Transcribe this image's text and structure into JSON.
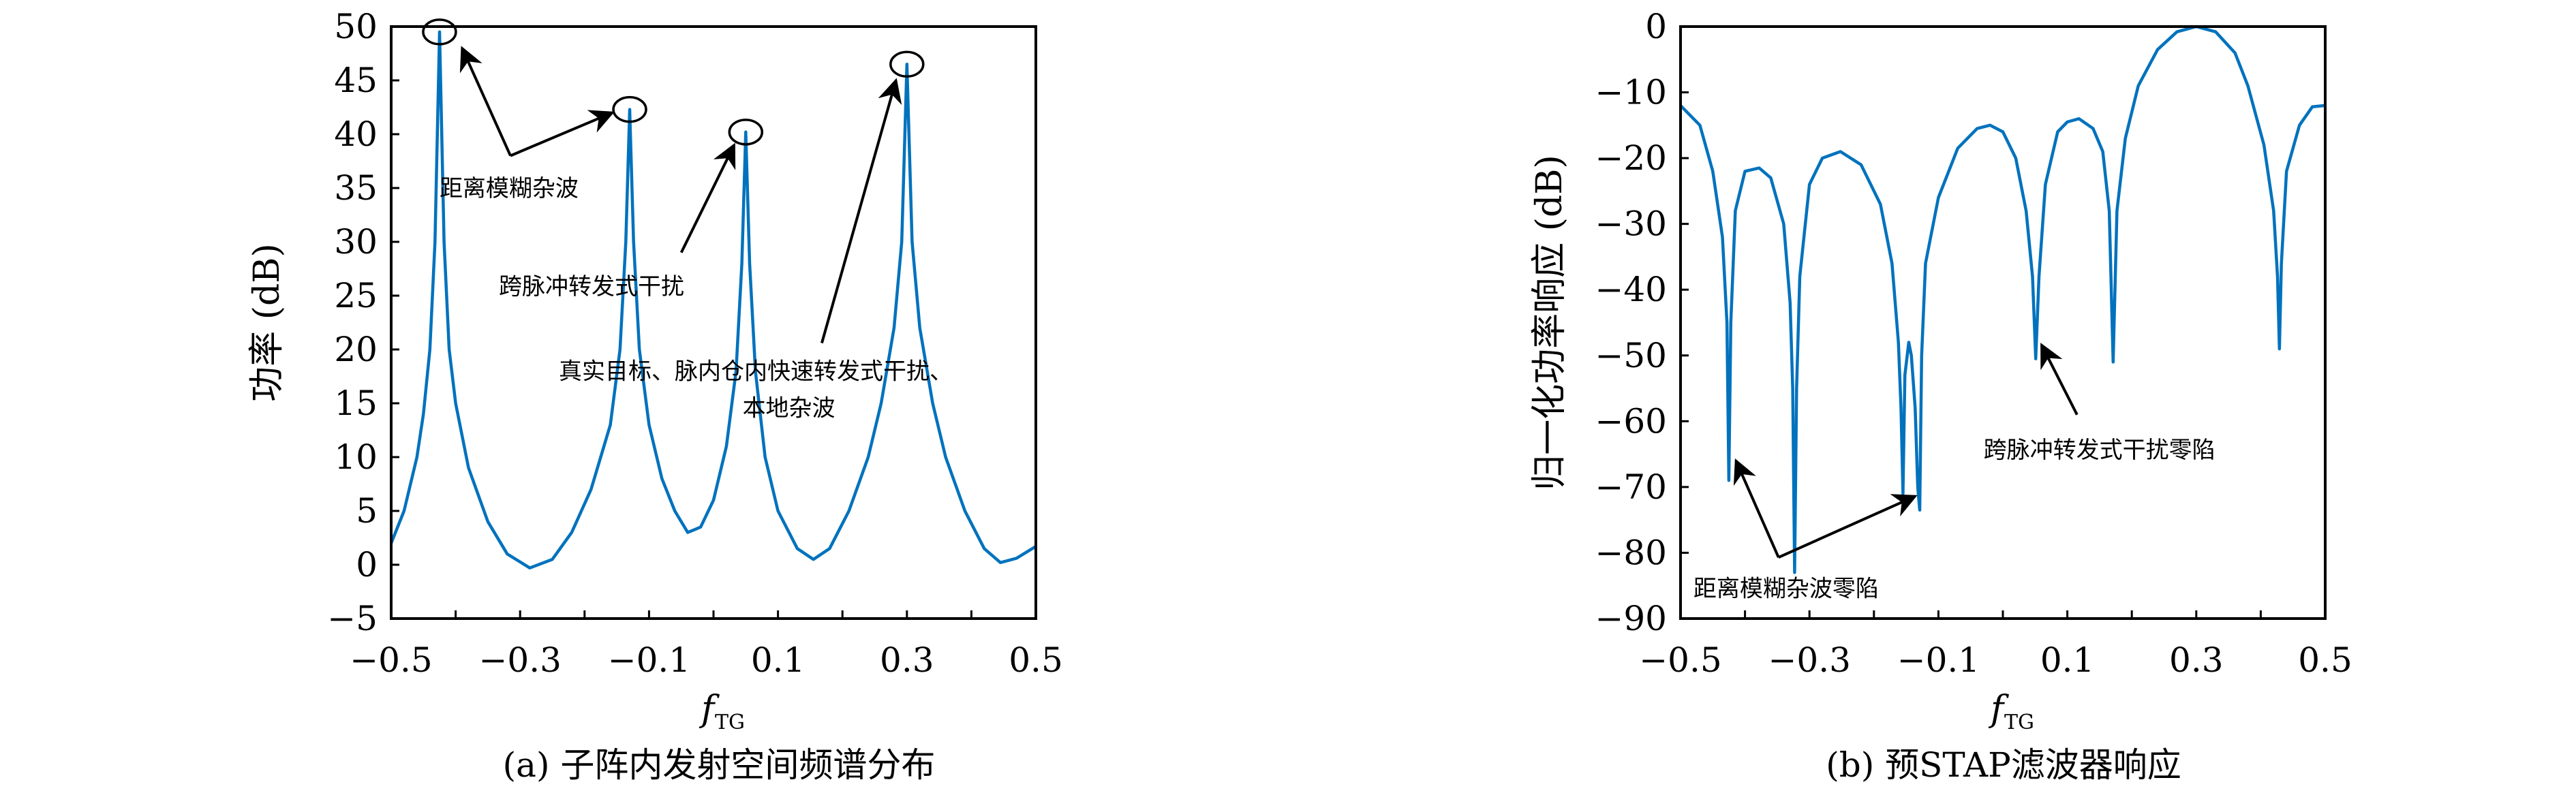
{
  "chart_data": [
    {
      "type": "line",
      "caption": "(a) 子阵内发射空间频谱分布",
      "xlabel": "f",
      "xlabel_sub": "TG",
      "ylabel": "功率 (dB)",
      "xlim": [
        -0.5,
        0.5
      ],
      "ylim": [
        -5,
        50
      ],
      "xticks": [
        -0.5,
        -0.4,
        -0.3,
        -0.2,
        -0.1,
        0,
        0.1,
        0.2,
        0.3,
        0.4,
        0.5
      ],
      "xticklabels": [
        "−0.5",
        "",
        "−0.3",
        "",
        "−0.1",
        "",
        "0.1",
        "",
        "0.3",
        "",
        "0.5"
      ],
      "yticks": [
        50,
        45,
        40,
        35,
        30,
        25,
        20,
        15,
        10,
        5,
        0,
        -5
      ],
      "yticklabels": [
        "50",
        "45",
        "40",
        "35",
        "30",
        "25",
        "20",
        "15",
        "10",
        "5",
        "0",
        "−5"
      ],
      "grid": false,
      "color": "#0072bd",
      "x": [
        -0.5,
        -0.48,
        -0.46,
        -0.45,
        -0.44,
        -0.432,
        -0.425,
        -0.418,
        -0.41,
        -0.4,
        -0.38,
        -0.35,
        -0.32,
        -0.285,
        -0.25,
        -0.22,
        -0.19,
        -0.16,
        -0.145,
        -0.136,
        -0.13,
        -0.124,
        -0.115,
        -0.1,
        -0.08,
        -0.06,
        -0.04,
        -0.02,
        0.0,
        0.02,
        0.035,
        0.044,
        0.05,
        0.056,
        0.065,
        0.08,
        0.1,
        0.13,
        0.155,
        0.18,
        0.21,
        0.24,
        0.26,
        0.28,
        0.292,
        0.3,
        0.308,
        0.32,
        0.34,
        0.36,
        0.39,
        0.42,
        0.445,
        0.47,
        0.5
      ],
      "y": [
        2,
        5,
        10,
        14,
        20,
        30,
        49.5,
        30,
        20,
        15,
        9,
        4,
        1,
        -0.3,
        0.5,
        3,
        7,
        13,
        20,
        30,
        42.3,
        30,
        20,
        13,
        8,
        5,
        3,
        3.5,
        6,
        11,
        18,
        28,
        40.2,
        28,
        18,
        10,
        5,
        1.5,
        0.5,
        1.5,
        5,
        10,
        15,
        22,
        30,
        46.5,
        30,
        22,
        15,
        10,
        5,
        1.5,
        0.2,
        0.6,
        1.7
      ],
      "annotations": {
        "circles": [
          {
            "x": -0.425,
            "y": 49.5
          },
          {
            "x": -0.13,
            "y": 42.3
          },
          {
            "x": 0.05,
            "y": 40.2
          },
          {
            "x": 0.3,
            "y": 46.5
          }
        ],
        "arrows": [
          {
            "from": [
              -0.315,
              38
            ],
            "to": [
              -0.39,
              48
            ]
          },
          {
            "from": [
              -0.315,
              38
            ],
            "to": [
              -0.157,
              42
            ]
          },
          {
            "from": [
              -0.05,
              29
            ],
            "to": [
              0.032,
              39
            ]
          },
          {
            "from": [
              0.168,
              20.6
            ],
            "to": [
              0.283,
              45
            ]
          }
        ],
        "labels": [
          {
            "text": "距离模糊杂波",
            "x": -0.425,
            "y": 35
          },
          {
            "text": "跨脉冲转发式干扰",
            "x": -0.333,
            "y": 25.9
          },
          {
            "text": "真实目标、脉内仓内快速转发式干扰、",
            "x": -0.24,
            "y": 18
          },
          {
            "text": "本地杂波",
            "x": 0.045,
            "y": 14.6
          }
        ]
      }
    },
    {
      "type": "line",
      "caption": "(b) 预STAP滤波器响应",
      "xlabel": "f",
      "xlabel_sub": "TG",
      "ylabel": "归一化功率响应 (dB)",
      "xlim": [
        -0.5,
        0.5
      ],
      "ylim": [
        -90,
        0
      ],
      "xticks": [
        -0.5,
        -0.4,
        -0.3,
        -0.2,
        -0.1,
        0,
        0.1,
        0.2,
        0.3,
        0.4,
        0.5
      ],
      "xticklabels": [
        "−0.5",
        "",
        "−0.3",
        "",
        "−0.1",
        "",
        "0.1",
        "",
        "0.3",
        "",
        "0.5"
      ],
      "yticks": [
        0,
        -10,
        -20,
        -30,
        -40,
        -50,
        -60,
        -70,
        -80,
        -90
      ],
      "yticklabels": [
        "0",
        "−10",
        "−20",
        "−30",
        "−40",
        "−50",
        "−60",
        "−70",
        "−80",
        "−90"
      ],
      "grid": false,
      "color": "#0072bd",
      "x": [
        -0.5,
        -0.47,
        -0.45,
        -0.435,
        -0.428,
        -0.425,
        -0.422,
        -0.415,
        -0.4,
        -0.378,
        -0.36,
        -0.34,
        -0.33,
        -0.326,
        -0.323,
        -0.32,
        -0.315,
        -0.3,
        -0.28,
        -0.252,
        -0.22,
        -0.19,
        -0.172,
        -0.162,
        -0.158,
        -0.155,
        -0.152,
        -0.146,
        -0.142,
        -0.136,
        -0.132,
        -0.129,
        -0.126,
        -0.12,
        -0.1,
        -0.07,
        -0.04,
        -0.02,
        0.0,
        0.02,
        0.036,
        0.046,
        0.051,
        0.056,
        0.066,
        0.085,
        0.1,
        0.118,
        0.14,
        0.155,
        0.165,
        0.171,
        0.177,
        0.19,
        0.21,
        0.24,
        0.27,
        0.3,
        0.33,
        0.36,
        0.38,
        0.405,
        0.42,
        0.426,
        0.429,
        0.432,
        0.44,
        0.46,
        0.48,
        0.5
      ],
      "y": [
        -12,
        -15,
        -22,
        -32,
        -45,
        -69,
        -45,
        -28,
        -22,
        -21.5,
        -23,
        -30,
        -42,
        -55,
        -83,
        -55,
        -38,
        -24,
        -20,
        -19,
        -21,
        -27,
        -36,
        -48,
        -58,
        -71,
        -53,
        -48,
        -50,
        -58,
        -70,
        -73.5,
        -50,
        -36,
        -26,
        -18.5,
        -15.5,
        -15,
        -16,
        -20,
        -28,
        -38,
        -50.5,
        -38,
        -24,
        -16,
        -14.5,
        -14,
        -15.5,
        -19,
        -28,
        -51,
        -28,
        -17,
        -9,
        -3.5,
        -0.8,
        0,
        -0.8,
        -4,
        -9,
        -18,
        -28,
        -38,
        -49,
        -36,
        -22,
        -15,
        -12.2,
        -12
      ],
      "annotations": {
        "arrows": [
          {
            "from": [
              -0.348,
              -80.7
            ],
            "to": [
              -0.414,
              -66
            ]
          },
          {
            "from": [
              -0.348,
              -80.7
            ],
            "to": [
              -0.136,
              -71.4
            ]
          },
          {
            "from": [
              0.115,
              -59
            ],
            "to": [
              0.06,
              -48.4
            ]
          }
        ],
        "labels": [
          {
            "text": "距离模糊杂波零陷",
            "x": -0.48,
            "y": -85.4
          },
          {
            "text": "跨脉冲转发式干扰零陷",
            "x": -0.03,
            "y": -64.3
          }
        ]
      }
    }
  ]
}
